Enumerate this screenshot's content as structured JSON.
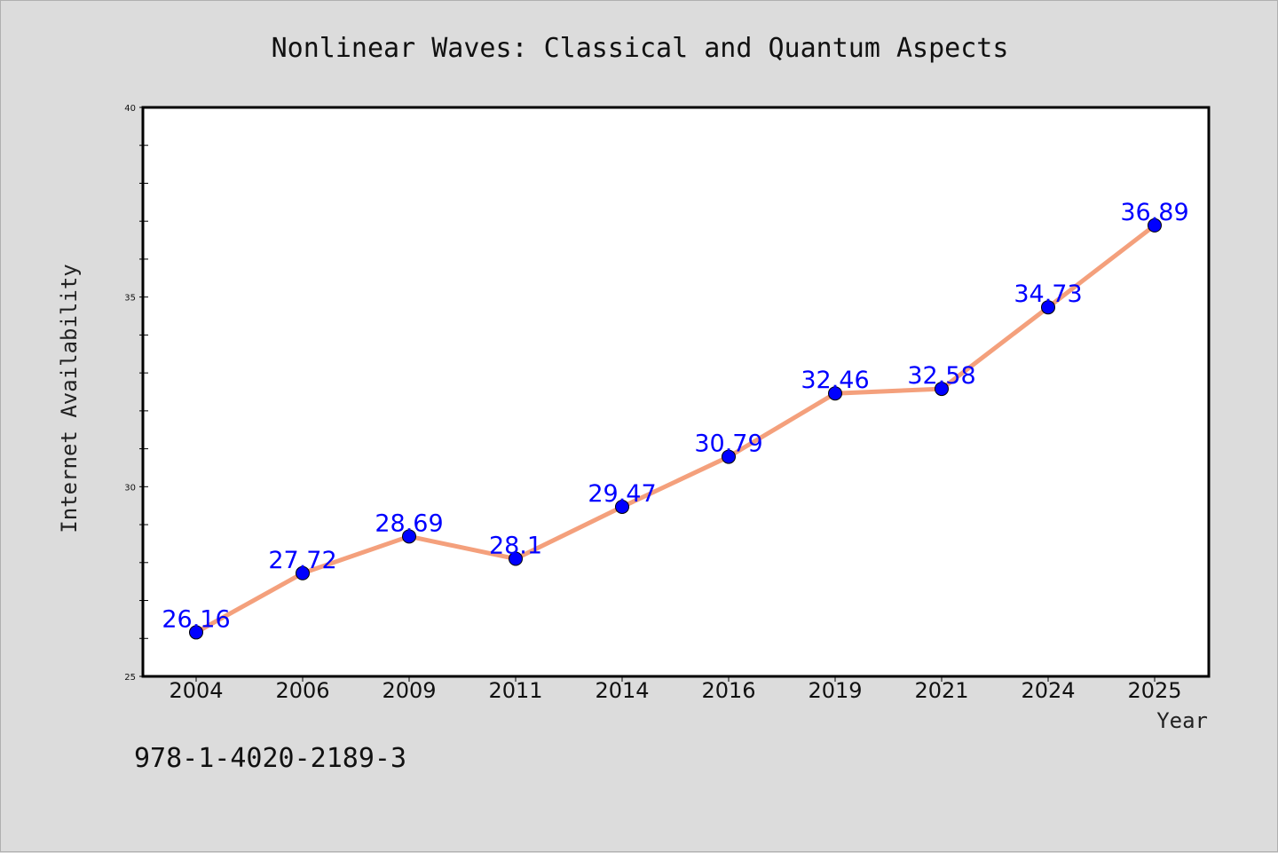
{
  "chart_data": {
    "type": "line",
    "title": "Nonlinear Waves: Classical and Quantum Aspects",
    "xlabel": "Year",
    "ylabel": "Internet Availability",
    "categories": [
      "2004",
      "2006",
      "2009",
      "2011",
      "2014",
      "2016",
      "2019",
      "2021",
      "2024",
      "2025"
    ],
    "values": [
      26.16,
      27.72,
      28.69,
      28.1,
      29.47,
      30.79,
      32.46,
      32.58,
      34.73,
      36.89
    ],
    "data_labels": [
      "26.16",
      "27.72",
      "28.69",
      "28.1",
      "29.47",
      "30.79",
      "32.46",
      "32.58",
      "34.73",
      "36.89"
    ],
    "ylim": [
      25,
      40
    ],
    "yticks": [
      25,
      30,
      35,
      40
    ],
    "ytick_labels": [
      "25",
      "30",
      "35",
      "40"
    ],
    "grid": false,
    "legend": "none",
    "line_color": "#f4a07c",
    "marker_color": "#0000ff",
    "label_color": "#0000ff"
  },
  "footer": {
    "isbn": "978-1-4020-2189-3"
  }
}
